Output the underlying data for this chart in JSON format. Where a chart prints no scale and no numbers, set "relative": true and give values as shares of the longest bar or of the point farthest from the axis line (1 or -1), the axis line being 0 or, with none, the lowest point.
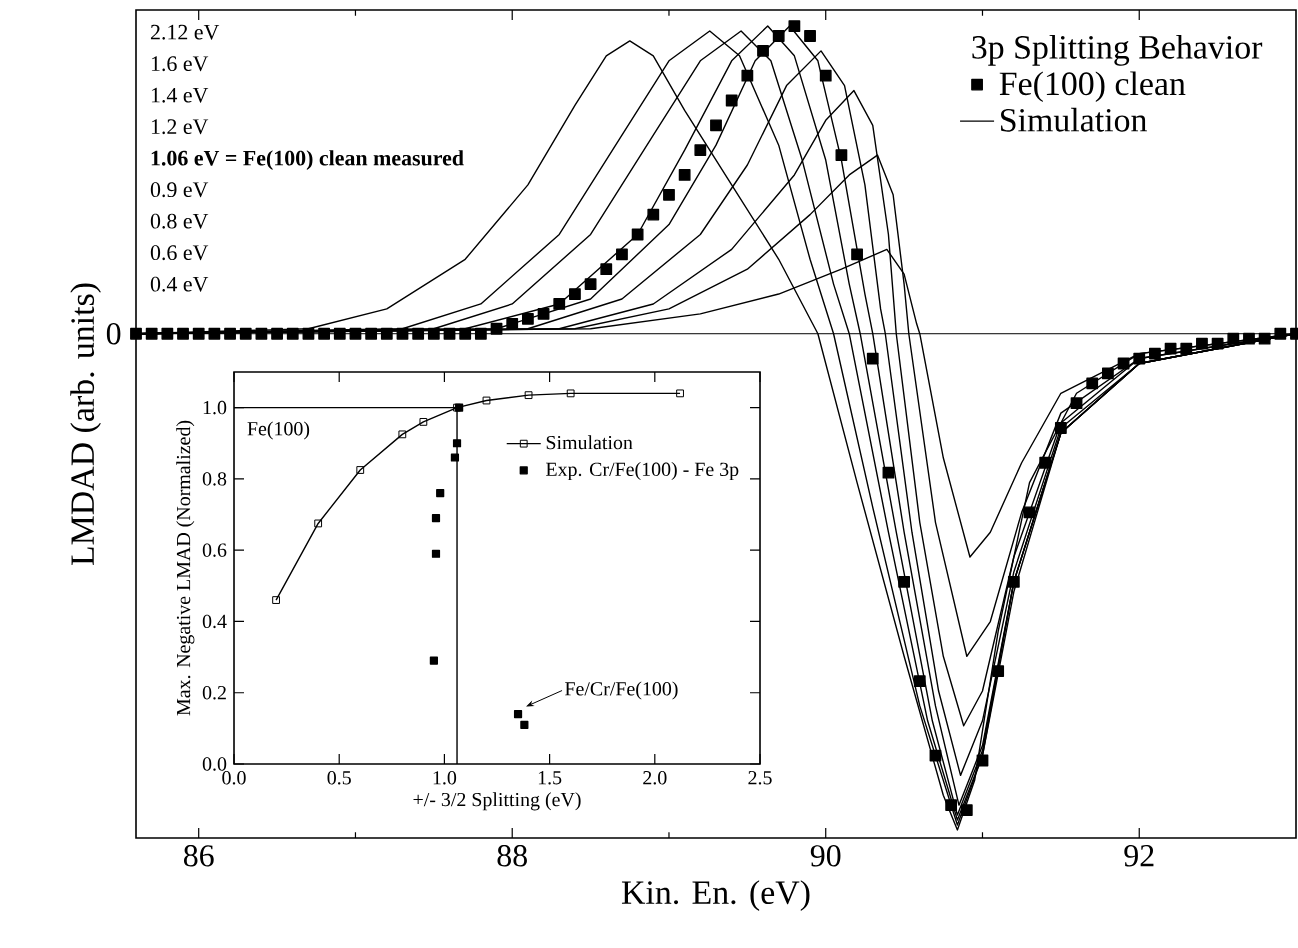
{
  "chart_data": [
    {
      "type": "line",
      "relative": true,
      "xlabel": "Kin. En. (eV)",
      "ylabel": "LMDAD (arb. units)",
      "xlim": [
        85.6,
        93.0
      ],
      "xticks": [
        86,
        88,
        90,
        92
      ],
      "ref_lines": [
        {
          "axis": "y",
          "value": 0,
          "label": "0",
          "color": "#000000"
        }
      ],
      "legend": "top right",
      "legend_title": "3p Splitting Behavior",
      "annotations": [
        "2.12 eV",
        "1.6 eV",
        "1.4 eV",
        "1.2 eV",
        "**1.06 eV = Fe(100) clean measured**",
        "0.9 eV",
        "0.8 eV",
        "0.6 eV",
        "0.4 eV"
      ],
      "series": [
        {
          "name": "Fe(100) clean",
          "type": "scatter",
          "marker": "square",
          "color": "#000000",
          "x": [
            85.6,
            85.7,
            85.8,
            85.9,
            86.0,
            86.1,
            86.2,
            86.3,
            86.4,
            86.5,
            86.6,
            86.7,
            86.8,
            86.9,
            87.0,
            87.1,
            87.2,
            87.3,
            87.4,
            87.5,
            87.6,
            87.7,
            87.8,
            87.9,
            88.0,
            88.1,
            88.2,
            88.3,
            88.4,
            88.5,
            88.6,
            88.7,
            88.8,
            88.9,
            89.0,
            89.1,
            89.2,
            89.3,
            89.4,
            89.5,
            89.6,
            89.7,
            89.8,
            89.9,
            90.0,
            90.1,
            90.2,
            90.3,
            90.4,
            90.5,
            90.6,
            90.7,
            90.8,
            90.9,
            91.0,
            91.1,
            91.2,
            91.3,
            91.4,
            91.5,
            91.6,
            91.7,
            91.8,
            91.9,
            92.0,
            92.1,
            92.2,
            92.3,
            92.4,
            92.5,
            92.6,
            92.7,
            92.8,
            92.9,
            93.0
          ],
          "values": [
            0,
            0,
            0,
            0,
            0,
            0,
            0,
            0,
            0,
            0,
            0,
            0,
            0,
            0,
            0,
            0,
            0,
            0,
            0,
            0,
            0,
            0,
            0,
            0.01,
            0.02,
            0.03,
            0.04,
            0.06,
            0.08,
            0.1,
            0.13,
            0.16,
            0.2,
            0.24,
            0.28,
            0.32,
            0.37,
            0.42,
            0.47,
            0.52,
            0.57,
            0.6,
            0.62,
            0.6,
            0.52,
            0.36,
            0.16,
            -0.05,
            -0.28,
            -0.5,
            -0.7,
            -0.85,
            -0.95,
            -0.96,
            -0.86,
            -0.68,
            -0.5,
            -0.36,
            -0.26,
            -0.19,
            -0.14,
            -0.1,
            -0.08,
            -0.06,
            -0.05,
            -0.04,
            -0.03,
            -0.03,
            -0.02,
            -0.02,
            -0.01,
            -0.01,
            -0.01,
            0,
            0
          ]
        },
        {
          "name": "Simulation",
          "color": "#000000",
          "x": [
            85.6,
            86.7,
            87.2,
            87.7,
            88.1,
            88.4,
            88.6,
            88.75,
            88.9,
            89.1,
            89.4,
            89.7,
            89.95,
            90.2,
            90.5,
            90.75,
            90.84,
            90.95,
            91.1,
            91.3,
            91.6,
            92.0,
            93.0
          ],
          "values": [
            0,
            0.01,
            0.05,
            0.15,
            0.3,
            0.46,
            0.56,
            0.59,
            0.56,
            0.45,
            0.3,
            0.15,
            0,
            -0.3,
            -0.65,
            -0.93,
            -1.0,
            -0.9,
            -0.6,
            -0.3,
            -0.12,
            -0.04,
            0
          ]
        },
        {
          "color": "#000000",
          "x": [
            85.6,
            87.3,
            87.8,
            88.3,
            88.7,
            89.0,
            89.26,
            89.45,
            89.7,
            89.9,
            90.05,
            90.3,
            90.6,
            90.84,
            91.0,
            91.2,
            91.5,
            92.0,
            93.0
          ],
          "values": [
            0,
            0.01,
            0.06,
            0.2,
            0.4,
            0.55,
            0.61,
            0.56,
            0.38,
            0.15,
            0,
            -0.35,
            -0.75,
            -0.99,
            -0.85,
            -0.5,
            -0.2,
            -0.06,
            0
          ]
        },
        {
          "color": "#000000",
          "x": [
            85.6,
            87.5,
            88.0,
            88.5,
            88.9,
            89.2,
            89.46,
            89.65,
            89.85,
            90.05,
            90.15,
            90.4,
            90.65,
            90.84,
            91.0,
            91.2,
            91.5,
            92.0,
            93.0
          ],
          "values": [
            0,
            0.01,
            0.06,
            0.2,
            0.4,
            0.55,
            0.61,
            0.55,
            0.35,
            0.1,
            0,
            -0.4,
            -0.78,
            -0.98,
            -0.85,
            -0.52,
            -0.2,
            -0.06,
            0
          ]
        },
        {
          "color": "#000000",
          "x": [
            85.6,
            87.7,
            88.3,
            88.8,
            89.1,
            89.4,
            89.63,
            89.8,
            90.0,
            90.15,
            90.22,
            90.45,
            90.68,
            90.84,
            91.0,
            91.2,
            91.5,
            92.0,
            93.0
          ],
          "values": [
            0,
            0.01,
            0.06,
            0.2,
            0.37,
            0.55,
            0.62,
            0.56,
            0.35,
            0.1,
            0,
            -0.4,
            -0.78,
            -0.97,
            -0.84,
            -0.5,
            -0.2,
            -0.06,
            0
          ]
        },
        {
          "color": "#000000",
          "x": [
            85.6,
            87.9,
            88.5,
            89.0,
            89.3,
            89.55,
            89.77,
            89.95,
            90.1,
            90.25,
            90.3,
            90.5,
            90.7,
            90.85,
            91.0,
            91.2,
            91.5,
            92.0,
            93.0
          ],
          "values": [
            0,
            0.01,
            0.07,
            0.22,
            0.38,
            0.55,
            0.62,
            0.55,
            0.35,
            0.08,
            0,
            -0.4,
            -0.75,
            -0.95,
            -0.83,
            -0.5,
            -0.2,
            -0.06,
            0
          ]
        },
        {
          "color": "#000000",
          "x": [
            85.6,
            88.1,
            88.7,
            89.2,
            89.5,
            89.75,
            89.97,
            90.12,
            90.25,
            90.35,
            90.38,
            90.55,
            90.72,
            90.86,
            91.0,
            91.2,
            91.5,
            92.0,
            93.0
          ],
          "values": [
            0,
            0.01,
            0.07,
            0.2,
            0.34,
            0.5,
            0.57,
            0.5,
            0.3,
            0.05,
            0,
            -0.4,
            -0.72,
            -0.89,
            -0.78,
            -0.48,
            -0.19,
            -0.06,
            0
          ]
        },
        {
          "color": "#000000",
          "x": [
            85.6,
            88.3,
            88.9,
            89.4,
            89.8,
            90.0,
            90.18,
            90.3,
            90.4,
            90.45,
            90.6,
            90.75,
            90.88,
            91.0,
            91.2,
            91.5,
            92.0,
            93.0
          ],
          "values": [
            0,
            0.01,
            0.06,
            0.17,
            0.32,
            0.43,
            0.49,
            0.42,
            0.2,
            0,
            -0.38,
            -0.65,
            -0.79,
            -0.72,
            -0.45,
            -0.18,
            -0.05,
            0
          ]
        },
        {
          "color": "#000000",
          "x": [
            85.6,
            88.4,
            89.0,
            89.5,
            89.9,
            90.15,
            90.33,
            90.43,
            90.5,
            90.53,
            90.7,
            90.9,
            91.05,
            91.25,
            91.5,
            92.0,
            93.0
          ],
          "values": [
            0,
            0.01,
            0.05,
            0.13,
            0.24,
            0.32,
            0.36,
            0.28,
            0.1,
            0,
            -0.38,
            -0.65,
            -0.58,
            -0.36,
            -0.16,
            -0.05,
            0
          ]
        },
        {
          "color": "#000000",
          "x": [
            85.6,
            88.5,
            89.2,
            89.7,
            90.1,
            90.39,
            90.5,
            90.58,
            90.6,
            90.75,
            90.92,
            91.05,
            91.25,
            91.5,
            92.0,
            93.0
          ],
          "values": [
            0,
            0.01,
            0.04,
            0.08,
            0.13,
            0.17,
            0.12,
            0.02,
            0,
            -0.25,
            -0.45,
            -0.4,
            -0.26,
            -0.12,
            -0.04,
            0
          ]
        }
      ]
    },
    {
      "type": "line",
      "xlabel": "+/- 3/2 Splitting (eV)",
      "ylabel": "Max. Negative LMAD (Normalized)",
      "xlim": [
        0,
        2.5
      ],
      "ylim": [
        0,
        1.1
      ],
      "xticks": [
        {
          "value": 0,
          "label": "0.0"
        },
        {
          "value": 0.5,
          "label": "0.5"
        },
        {
          "value": 1,
          "label": "1.0"
        },
        {
          "value": 1.5,
          "label": "1.5"
        },
        {
          "value": 2,
          "label": "2.0"
        },
        {
          "value": 2.5,
          "label": "2.5"
        }
      ],
      "yticks": [
        {
          "value": 0,
          "label": "0.0"
        },
        {
          "value": 0.2,
          "label": "0.2"
        },
        {
          "value": 0.4,
          "label": "0.4"
        },
        {
          "value": 0.6,
          "label": "0.6"
        },
        {
          "value": 0.8,
          "label": "0.8"
        },
        {
          "value": 1,
          "label": "1.0"
        }
      ],
      "legend": "right",
      "annotations": [
        "Fe(100)",
        {
          "text": "Fe/Cr/Fe(100)",
          "x": 1.35,
          "y": 0.15
        }
      ],
      "series": [
        {
          "color": "#000000",
          "x": [
            0,
            1.06,
            1.06
          ],
          "values": [
            1.0,
            1.0,
            0
          ]
        },
        {
          "name": "Simulation",
          "marker": "square",
          "color": "#000000",
          "x": [
            0.2,
            0.4,
            0.6,
            0.8,
            0.9,
            1.06,
            1.2,
            1.4,
            1.6,
            2.12
          ],
          "values": [
            0.46,
            0.675,
            0.825,
            0.925,
            0.96,
            1.0,
            1.02,
            1.035,
            1.04,
            1.04
          ]
        },
        {
          "name": "Exp. Cr/Fe(100) - Fe 3p",
          "type": "scatter",
          "marker": "square",
          "color": "#000000",
          "x": [
            0.95,
            0.96,
            0.96,
            0.98,
            1.05,
            1.06,
            1.07,
            1.35,
            1.38
          ],
          "values": [
            0.29,
            0.59,
            0.69,
            0.76,
            0.86,
            0.9,
            1.0,
            0.14,
            0.11
          ]
        }
      ]
    }
  ]
}
